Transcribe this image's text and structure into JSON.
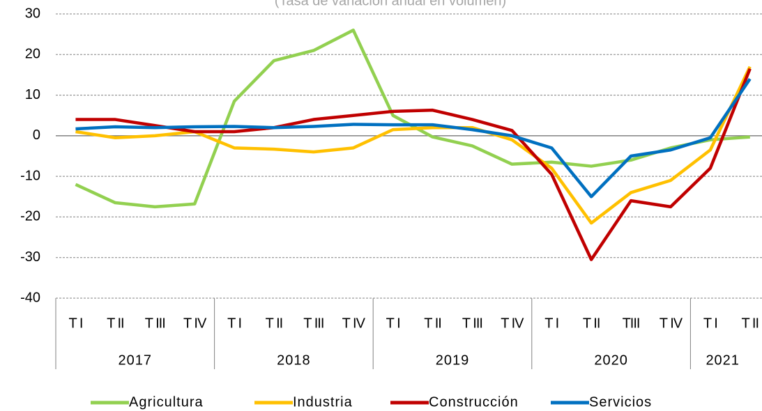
{
  "chart_data": {
    "type": "line",
    "title": "(Tasa de variación  anual en volumen)",
    "categories": [
      "T I",
      "T II",
      "T III",
      "T IV",
      "T I",
      "T II",
      "T III",
      "T IV",
      "T I",
      "T II",
      "T III",
      "T IV",
      "T I",
      "T II",
      "TIII",
      "T IV",
      "T I",
      "T II"
    ],
    "groups": [
      "2017",
      "2018",
      "2019",
      "2020",
      "2021"
    ],
    "series": [
      {
        "name": "Agricultura",
        "color": "#92d050",
        "values": [
          -12,
          -16.5,
          -17.5,
          -16.8,
          8.5,
          18.5,
          21,
          26,
          5,
          -0.3,
          -2.5,
          -7,
          -6.5,
          -7.5,
          -6,
          -3,
          -1,
          -0.3
        ]
      },
      {
        "name": "Industria",
        "color": "#ffc000",
        "values": [
          1,
          -0.5,
          0,
          1,
          -3,
          -3.3,
          -4,
          -3,
          1.5,
          2,
          2,
          -1,
          -8,
          -21.5,
          -14,
          -11,
          -3.5,
          17
        ]
      },
      {
        "name": "Construcción",
        "color": "#c00000",
        "values": [
          4,
          4,
          2.5,
          1,
          1,
          2,
          4,
          5,
          6,
          6.3,
          4,
          1.3,
          -9.5,
          -30.5,
          -16,
          -17.5,
          -8,
          16.5
        ]
      },
      {
        "name": "Servicios",
        "color": "#0070c0",
        "values": [
          1.7,
          2.2,
          2,
          2.2,
          2.3,
          2,
          2.3,
          2.8,
          2.7,
          2.7,
          1.5,
          0,
          -3,
          -15,
          -5,
          -3.5,
          -0.5,
          14
        ]
      }
    ],
    "ylim": [
      -40,
      30
    ],
    "yticks": [
      -40,
      -30,
      -20,
      -10,
      0,
      10,
      20,
      30
    ],
    "grid": true,
    "legend": "bottom"
  }
}
